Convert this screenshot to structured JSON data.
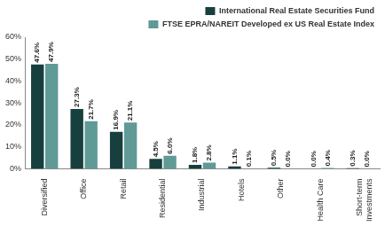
{
  "chart_data": {
    "type": "bar",
    "categories": [
      "Diversified",
      "Office",
      "Retail",
      "Residential",
      "Industrial",
      "Hotels",
      "Other",
      "Health Care",
      "Short-term Investments"
    ],
    "series": [
      {
        "name": "International Real Estate Securities Fund",
        "color": "#173f3e",
        "values": [
          47.6,
          27.3,
          16.9,
          4.5,
          1.8,
          1.1,
          0.5,
          0.0,
          0.3
        ],
        "value_labels": [
          "47.6%",
          "27.3%",
          "16.9%",
          "4.5%",
          "1.8%",
          "1.1%",
          "0.5%",
          "0.0%",
          "0.3%"
        ]
      },
      {
        "name": "FTSE EPRA/NAREIT Developed ex US Real Estate Index",
        "color": "#5f9a97",
        "values": [
          47.9,
          21.7,
          21.1,
          6.0,
          2.8,
          0.1,
          0.0,
          0.4,
          0.0
        ],
        "value_labels": [
          "47.9%",
          "21.7%",
          "21.1%",
          "6.0%",
          "2.8%",
          "0.1%",
          "0.0%",
          "0.4%",
          "0.0%"
        ]
      }
    ],
    "ylim": [
      0,
      60
    ],
    "yticks": [
      {
        "value": 0,
        "label": "0%"
      },
      {
        "value": 10,
        "label": "10%"
      },
      {
        "value": 20,
        "label": "20%"
      },
      {
        "value": 30,
        "label": "30%"
      },
      {
        "value": 40,
        "label": "40%"
      },
      {
        "value": 50,
        "label": "50%"
      },
      {
        "value": 60,
        "label": "60%"
      }
    ],
    "grid": false,
    "legend": "top",
    "data_labels": true
  }
}
